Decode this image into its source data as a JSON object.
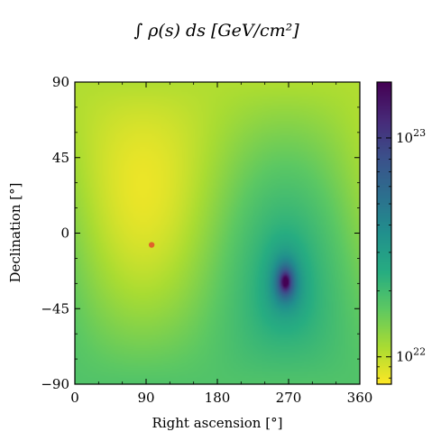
{
  "chart_data": {
    "type": "heatmap",
    "title": "∫ ρ(s) ds [GeV/cm²]",
    "xlabel": "Right ascension [°]",
    "ylabel": "Declination [°]",
    "xlim": [
      0,
      360
    ],
    "ylim": [
      -90,
      90
    ],
    "xticks": [
      "0",
      "90",
      "180",
      "270",
      "360"
    ],
    "yticks": [
      "−90",
      "−45",
      "0",
      "45",
      "90"
    ],
    "colorbar": {
      "scale": "log",
      "range": [
        7.5e+21,
        1.8e+23
      ],
      "ticks": [
        {
          "value": 1e+22,
          "label_base": "10",
          "label_exp": "22"
        },
        {
          "value": 1e+23,
          "label_base": "10",
          "label_exp": "23"
        }
      ],
      "colormap": "viridis"
    },
    "field": {
      "maximum": {
        "ra": 266,
        "dec": -29
      },
      "minimum": {
        "ra": 90,
        "dec": 30
      }
    },
    "marker": {
      "ra": 97,
      "dec": -7,
      "color": "#e0622a"
    }
  }
}
